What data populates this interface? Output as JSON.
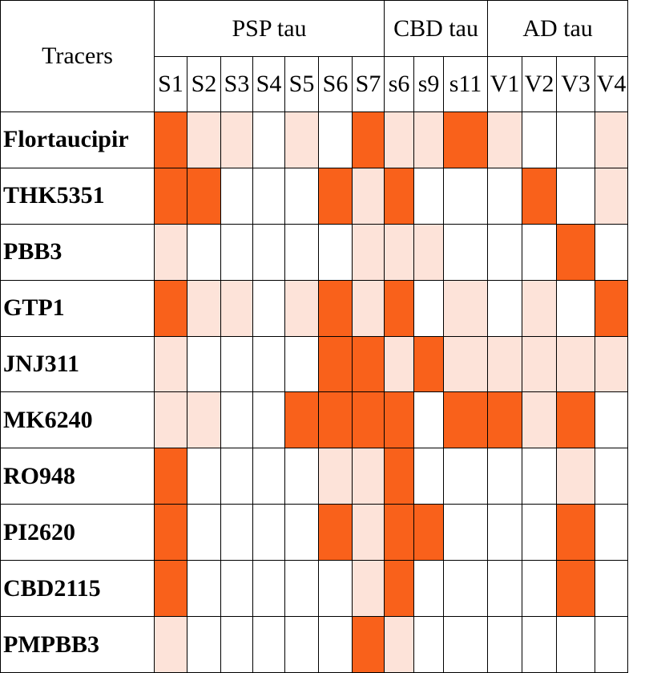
{
  "chart_data": {
    "type": "heatmap",
    "corner_label": "Tracers",
    "groups": [
      {
        "name": "PSP tau",
        "columns": [
          "S1",
          "S2",
          "S3",
          "S4",
          "S5",
          "S6",
          "S7"
        ]
      },
      {
        "name": "CBD tau",
        "columns": [
          "s6",
          "s9",
          "s11"
        ]
      },
      {
        "name": "AD tau",
        "columns": [
          "V1",
          "V2",
          "V3",
          "V4"
        ]
      }
    ],
    "columns": [
      "S1",
      "S2",
      "S3",
      "S4",
      "S5",
      "S6",
      "S7",
      "s6",
      "s9",
      "s11",
      "V1",
      "V2",
      "V3",
      "V4"
    ],
    "rows": [
      "Flortaucipir",
      "THK5351",
      "PBB3",
      "GTP1",
      "JNJ311",
      "MK6240",
      "RO948",
      "PI2620",
      "CBD2115",
      "PMPBB3"
    ],
    "values": [
      [
        2,
        1,
        1,
        0,
        1,
        0,
        2,
        1,
        1,
        2,
        1,
        0,
        0,
        1
      ],
      [
        2,
        2,
        0,
        0,
        0,
        2,
        1,
        2,
        0,
        0,
        0,
        2,
        0,
        1
      ],
      [
        1,
        0,
        0,
        0,
        0,
        0,
        1,
        1,
        1,
        0,
        0,
        0,
        2,
        0
      ],
      [
        2,
        1,
        1,
        0,
        1,
        2,
        1,
        2,
        0,
        1,
        0,
        1,
        0,
        2
      ],
      [
        1,
        0,
        0,
        0,
        0,
        2,
        2,
        1,
        2,
        1,
        1,
        1,
        1,
        1
      ],
      [
        1,
        1,
        0,
        0,
        2,
        2,
        2,
        2,
        0,
        2,
        2,
        1,
        2,
        0
      ],
      [
        2,
        0,
        0,
        0,
        0,
        1,
        1,
        2,
        0,
        0,
        0,
        0,
        1,
        0
      ],
      [
        2,
        0,
        0,
        0,
        0,
        2,
        1,
        2,
        2,
        0,
        0,
        0,
        2,
        0
      ],
      [
        2,
        0,
        0,
        0,
        0,
        0,
        1,
        2,
        0,
        0,
        0,
        0,
        2,
        0
      ],
      [
        1,
        0,
        0,
        0,
        0,
        0,
        2,
        1,
        0,
        0,
        0,
        0,
        0,
        0
      ]
    ],
    "color_scale": {
      "0": "#ffffff",
      "1": "#fde3d9",
      "2": "#f9611b"
    }
  }
}
